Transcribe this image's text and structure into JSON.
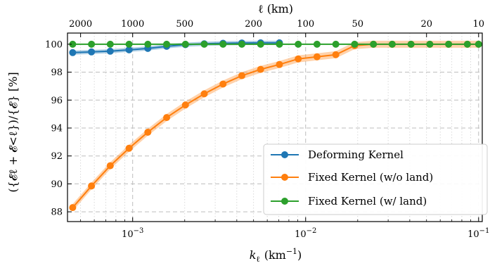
{
  "chart_data": {
    "type": "line",
    "x_scale": "log",
    "xlim": [
      0.00042,
      0.105
    ],
    "ylim": [
      87.3,
      100.8
    ],
    "grid": true,
    "grid_style": "dashed major, dotted minor",
    "xlabel_parts": {
      "base": "k",
      "sub": "ℓ",
      "unit_open": "(km",
      "sup": "−1",
      "unit_close": ")"
    },
    "ylabel": "({𝓔ℓ + 𝓔<ℓ})/{𝓔} [%]",
    "top_xlabel": "ℓ (km)",
    "x_ticks": [
      {
        "value": 0.001,
        "base": "10",
        "exp": "−3"
      },
      {
        "value": 0.01,
        "base": "10",
        "exp": "−2"
      },
      {
        "value": 0.1,
        "base": "10",
        "exp": "−1"
      }
    ],
    "y_ticks": [
      88,
      90,
      92,
      94,
      96,
      98,
      100
    ],
    "top_ticks": [
      2000,
      1000,
      500,
      200,
      100,
      50,
      20,
      10
    ],
    "legend_position": "lower-right",
    "series": [
      {
        "name": "Deforming Kernel",
        "color": "#1f77b4",
        "x": [
          0.00045,
          0.000578,
          0.000742,
          0.000953,
          0.001224,
          0.001572,
          0.002019,
          0.002593,
          0.00333,
          0.004277,
          0.005493,
          0.007055
        ],
        "y": [
          99.4,
          99.45,
          99.5,
          99.6,
          99.7,
          99.85,
          99.97,
          100.03,
          100.07,
          100.09,
          100.1,
          100.1
        ],
        "band": 0.15
      },
      {
        "name": "Fixed Kernel (w/o land)",
        "color": "#ff7f0e",
        "x": [
          0.00045,
          0.000578,
          0.000742,
          0.000953,
          0.001224,
          0.001572,
          0.002019,
          0.002593,
          0.00333,
          0.004277,
          0.005493,
          0.007055,
          0.009061,
          0.011637,
          0.014946,
          0.019195,
          0.024653,
          0.031663,
          0.040666,
          0.052228,
          0.067078,
          0.08615,
          0.1
        ],
        "y": [
          88.3,
          89.85,
          91.3,
          92.55,
          93.7,
          94.75,
          95.65,
          96.45,
          97.15,
          97.75,
          98.2,
          98.55,
          98.95,
          99.1,
          99.25,
          99.9,
          100.0,
          100.0,
          100.0,
          100.0,
          100.0,
          100.0,
          100.0
        ],
        "band": 0.25
      },
      {
        "name": "Fixed Kernel (w/ land)",
        "color": "#2ca02c",
        "x": [
          0.00045,
          0.000578,
          0.000742,
          0.000953,
          0.001224,
          0.001572,
          0.002019,
          0.002593,
          0.00333,
          0.004277,
          0.005493,
          0.007055,
          0.009061,
          0.011637,
          0.014946,
          0.019195,
          0.024653,
          0.031663,
          0.040666,
          0.052228,
          0.067078,
          0.08615,
          0.1
        ],
        "y": [
          100.0,
          100.0,
          100.0,
          100.0,
          100.0,
          100.0,
          100.0,
          100.0,
          100.0,
          100.0,
          100.0,
          100.0,
          100.0,
          100.0,
          100.0,
          100.0,
          100.0,
          100.0,
          100.0,
          100.0,
          100.0,
          100.0,
          100.0
        ],
        "band": 0.02
      }
    ]
  }
}
